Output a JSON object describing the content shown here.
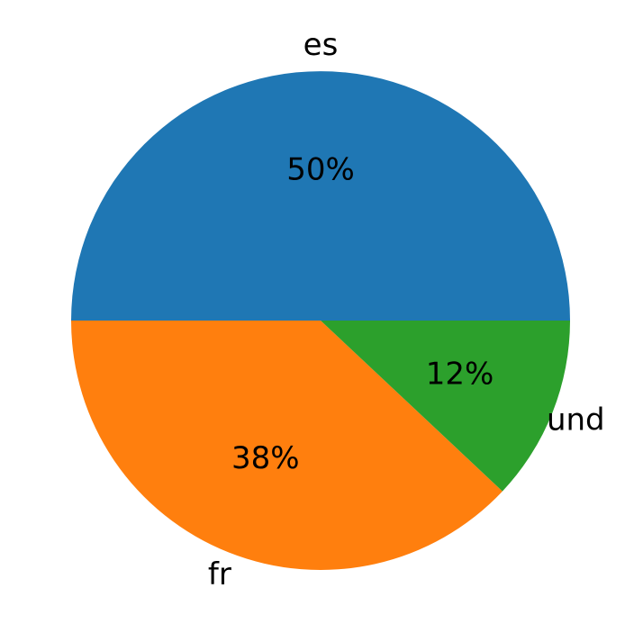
{
  "chart_data": {
    "type": "pie",
    "categories": [
      "es",
      "fr",
      "und"
    ],
    "values": [
      50,
      38,
      12
    ],
    "value_labels": [
      "50%",
      "38%",
      "12%"
    ],
    "colors": [
      "#1f77b4",
      "#ff7f0e",
      "#2ca02c"
    ]
  }
}
